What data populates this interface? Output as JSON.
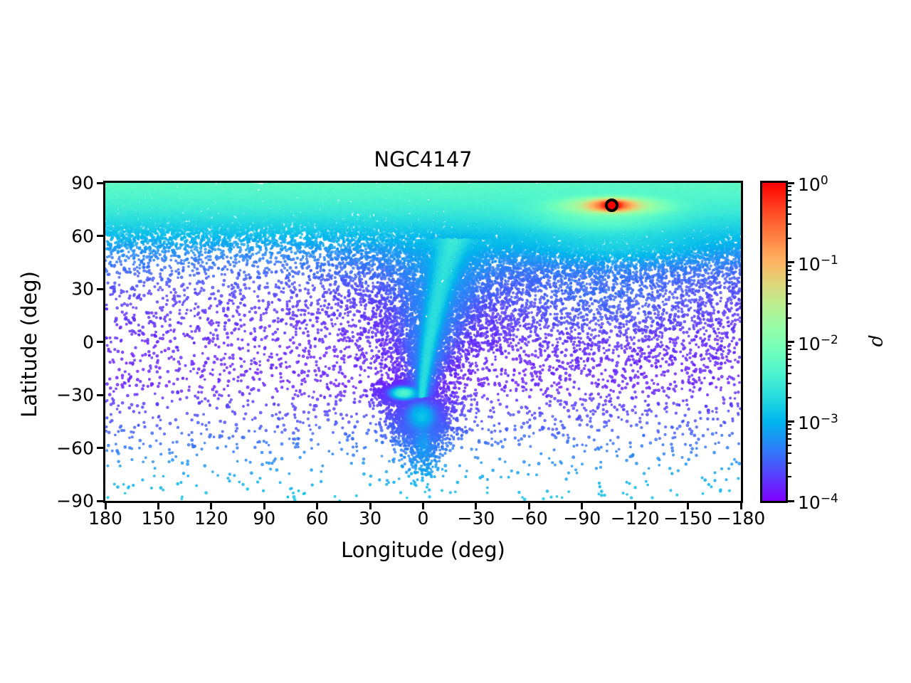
{
  "chart_data": {
    "type": "scatter",
    "title": "NGC4147",
    "xlabel": "Longitude (deg)",
    "ylabel": "Latitude (deg)",
    "xlim": [
      180,
      -180
    ],
    "ylim": [
      -90,
      90
    ],
    "xticks": [
      {
        "value": 180,
        "label": "180"
      },
      {
        "value": 150,
        "label": "150"
      },
      {
        "value": 120,
        "label": "120"
      },
      {
        "value": 90,
        "label": "90"
      },
      {
        "value": 60,
        "label": "60"
      },
      {
        "value": 30,
        "label": "30"
      },
      {
        "value": 0,
        "label": "0"
      },
      {
        "value": -30,
        "label": "−30"
      },
      {
        "value": -60,
        "label": "−60"
      },
      {
        "value": -90,
        "label": "−90"
      },
      {
        "value": -120,
        "label": "−120"
      },
      {
        "value": -150,
        "label": "−150"
      },
      {
        "value": -180,
        "label": "−180"
      }
    ],
    "yticks": [
      {
        "value": 90,
        "label": "90"
      },
      {
        "value": 60,
        "label": "60"
      },
      {
        "value": 30,
        "label": "30"
      },
      {
        "value": 0,
        "label": "0"
      },
      {
        "value": -30,
        "label": "−30"
      },
      {
        "value": -60,
        "label": "−60"
      },
      {
        "value": -90,
        "label": "−90"
      }
    ],
    "colorbar": {
      "label": "ρ",
      "colormap": "rainbow",
      "scale": "log",
      "range_exp": [
        -4,
        0
      ],
      "tick_exponents": [
        {
          "exp": 0,
          "label": "0"
        },
        {
          "exp": -1,
          "label": "−1"
        },
        {
          "exp": -2,
          "label": "−2"
        },
        {
          "exp": -3,
          "label": "−3"
        },
        {
          "exp": -4,
          "label": "−4"
        }
      ],
      "minor_decades": [
        -1,
        -2,
        -3,
        -4
      ],
      "minor_mantissas": [
        2,
        3,
        4,
        5,
        6,
        7,
        8,
        9
      ]
    },
    "marker": {
      "lon": -107,
      "lat": 77.1,
      "fill": "#ff0000",
      "edge": "#000000"
    },
    "density_model": {
      "seed": 20231104,
      "value_range": [
        -4.12,
        0
      ],
      "alpha": 0.8,
      "dot_radius": [
        1.8,
        2.5
      ],
      "background_count": 30000,
      "base_profile": [
        [
          -90,
          -2.95
        ],
        [
          -75,
          -3.2
        ],
        [
          -62,
          -3.45
        ],
        [
          -45,
          -3.7
        ],
        [
          -25,
          -3.95
        ],
        [
          0,
          -3.92
        ],
        [
          20,
          -3.85
        ],
        [
          32,
          -3.72
        ],
        [
          42,
          -3.55
        ],
        [
          50,
          -3.38
        ],
        [
          56,
          -3.18
        ],
        [
          62,
          -3.0
        ],
        [
          68,
          -2.82
        ],
        [
          75,
          -2.62
        ],
        [
          82,
          -2.48
        ],
        [
          90,
          -2.35
        ]
      ],
      "count_profile": [
        [
          -90,
          0.28
        ],
        [
          -70,
          0.45
        ],
        [
          -55,
          0.8
        ],
        [
          -40,
          1.15
        ],
        [
          -20,
          1.4
        ],
        [
          0,
          1.5
        ],
        [
          20,
          1.7
        ],
        [
          32,
          1.95
        ],
        [
          42,
          2.7
        ],
        [
          50,
          4.6
        ],
        [
          56,
          9
        ],
        [
          62,
          18
        ],
        [
          68,
          30
        ],
        [
          74,
          40
        ],
        [
          82,
          47
        ],
        [
          90,
          44
        ]
      ],
      "gaussians": [
        {
          "name": "right-wide-debris",
          "center": [
            -100,
            25
          ],
          "sigma": [
            75,
            28
          ],
          "peak": -4.0,
          "count": 2200
        },
        {
          "name": "right-mid-shelf",
          "center": [
            -110,
            55
          ],
          "sigma": [
            70,
            14
          ],
          "peak": -3.15,
          "count": 3200
        },
        {
          "name": "right-halo",
          "center": [
            -102,
            71
          ],
          "sigma": [
            52,
            11
          ],
          "peak": -2.5,
          "count": 6500
        },
        {
          "name": "streak-green",
          "center": [
            -107,
            77
          ],
          "sigma": [
            33,
            5.2
          ],
          "peak": -1.6,
          "count": 2400
        },
        {
          "name": "streak-orange",
          "center": [
            -107,
            77.2
          ],
          "sigma": [
            14,
            3.0
          ],
          "peak": -0.6,
          "count": 1300
        },
        {
          "name": "core-red",
          "center": [
            -107,
            77.3
          ],
          "sigma": [
            6,
            1.8
          ],
          "peak": 0,
          "count": 800
        },
        {
          "name": "hook-knot",
          "center": [
            11,
            -29
          ],
          "sigma": [
            7,
            3.0
          ],
          "peak": -2.5,
          "count": 1300
        },
        {
          "name": "lower-blob",
          "center": [
            1,
            -42
          ],
          "sigma": [
            8.5,
            8
          ],
          "peak": -3.1,
          "count": 2000
        },
        {
          "name": "lower-tail",
          "center": [
            0,
            -57
          ],
          "sigma": [
            5.5,
            11
          ],
          "peak": -3.65,
          "count": 420
        }
      ],
      "stream": {
        "b_range": [
          -31,
          58
        ],
        "center_poly": [
          -3.5,
          -0.17,
          -0.0012
        ],
        "core": {
          "sigma0": 2.2,
          "sigma_slope": 0.1,
          "peak": -2.9,
          "count": 2800,
          "bias": 0.85
        },
        "wing": {
          "sigma0": 7.0,
          "sigma_slope": 0.5,
          "peak": -3.52,
          "count": 4000,
          "bias": 0.7
        }
      }
    }
  }
}
